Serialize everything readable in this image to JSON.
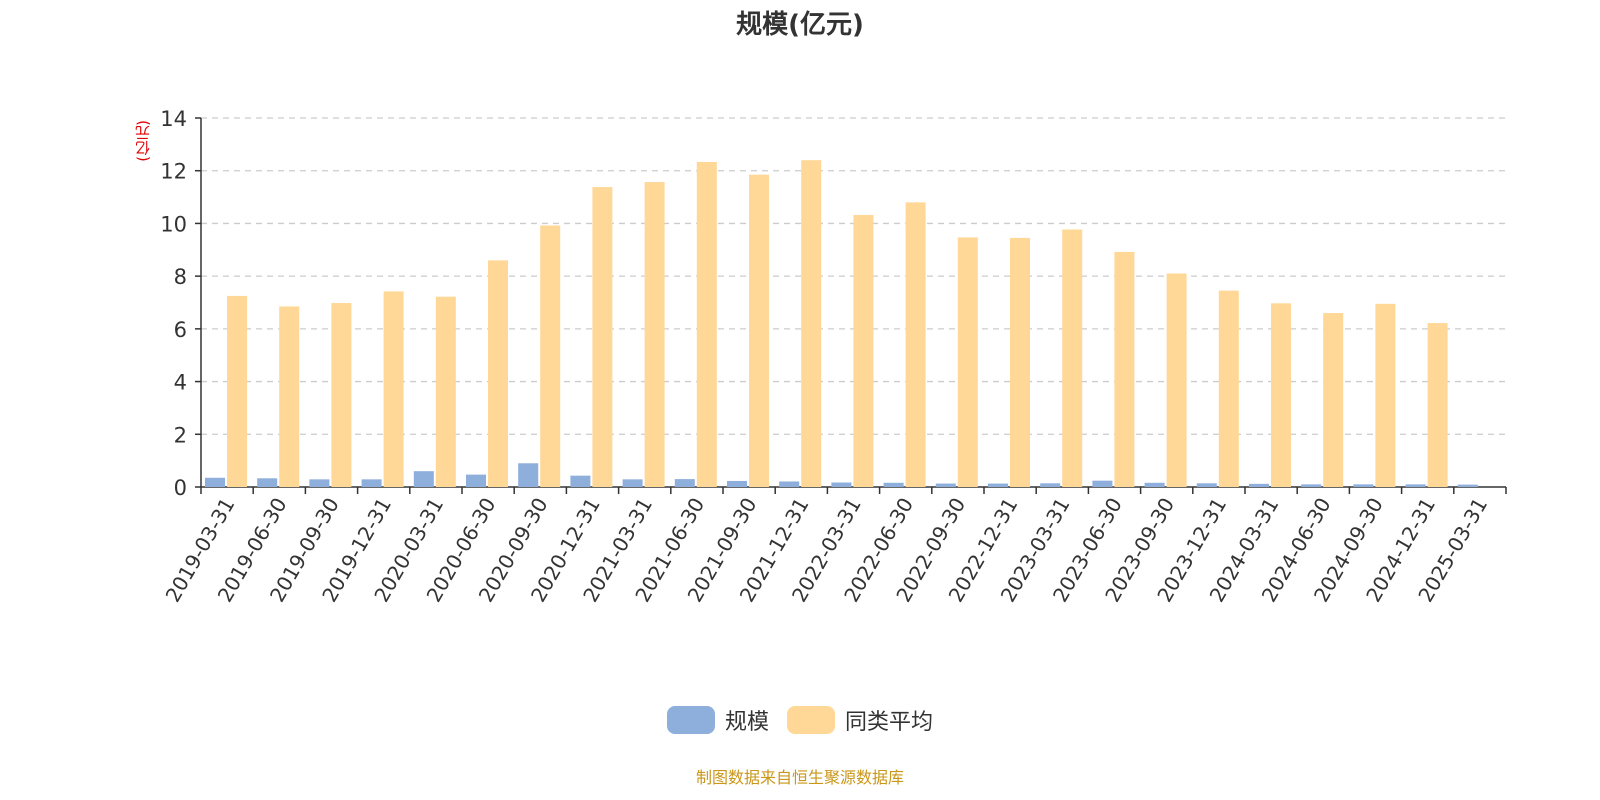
{
  "chart_data": {
    "type": "bar",
    "title": "规模(亿元)",
    "ylabel": "(亿元)",
    "ylim": [
      0,
      14
    ],
    "yticks": [
      0,
      2,
      4,
      6,
      8,
      10,
      12,
      14
    ],
    "grid": true,
    "legend_position": "bottom-center",
    "categories": [
      "2019-03-31",
      "2019-06-30",
      "2019-09-30",
      "2019-12-31",
      "2020-03-31",
      "2020-06-30",
      "2020-09-30",
      "2020-12-31",
      "2021-03-31",
      "2021-06-30",
      "2021-09-30",
      "2021-12-31",
      "2022-03-31",
      "2022-06-30",
      "2022-09-30",
      "2022-12-31",
      "2023-03-31",
      "2023-06-30",
      "2023-09-30",
      "2023-12-31",
      "2024-03-31",
      "2024-06-30",
      "2024-09-30",
      "2024-12-31",
      "2025-03-31"
    ],
    "series": [
      {
        "name": "规模",
        "color": "#8eaedc",
        "values": [
          0.35,
          0.33,
          0.29,
          0.29,
          0.6,
          0.47,
          0.9,
          0.43,
          0.29,
          0.3,
          0.23,
          0.21,
          0.17,
          0.16,
          0.13,
          0.13,
          0.14,
          0.24,
          0.16,
          0.14,
          0.12,
          0.1,
          0.1,
          0.1,
          0.09
        ]
      },
      {
        "name": "同类平均",
        "color": "#ffd898",
        "values": [
          7.25,
          6.85,
          6.98,
          7.42,
          7.22,
          8.6,
          9.92,
          11.38,
          11.57,
          12.33,
          11.85,
          12.4,
          10.32,
          10.8,
          9.47,
          9.45,
          9.77,
          8.92,
          8.1,
          7.45,
          6.97,
          6.6,
          6.95,
          6.22,
          null
        ]
      }
    ]
  },
  "legend": {
    "items": [
      "规模",
      "同类平均"
    ]
  },
  "source": "制图数据来自恒生聚源数据库"
}
